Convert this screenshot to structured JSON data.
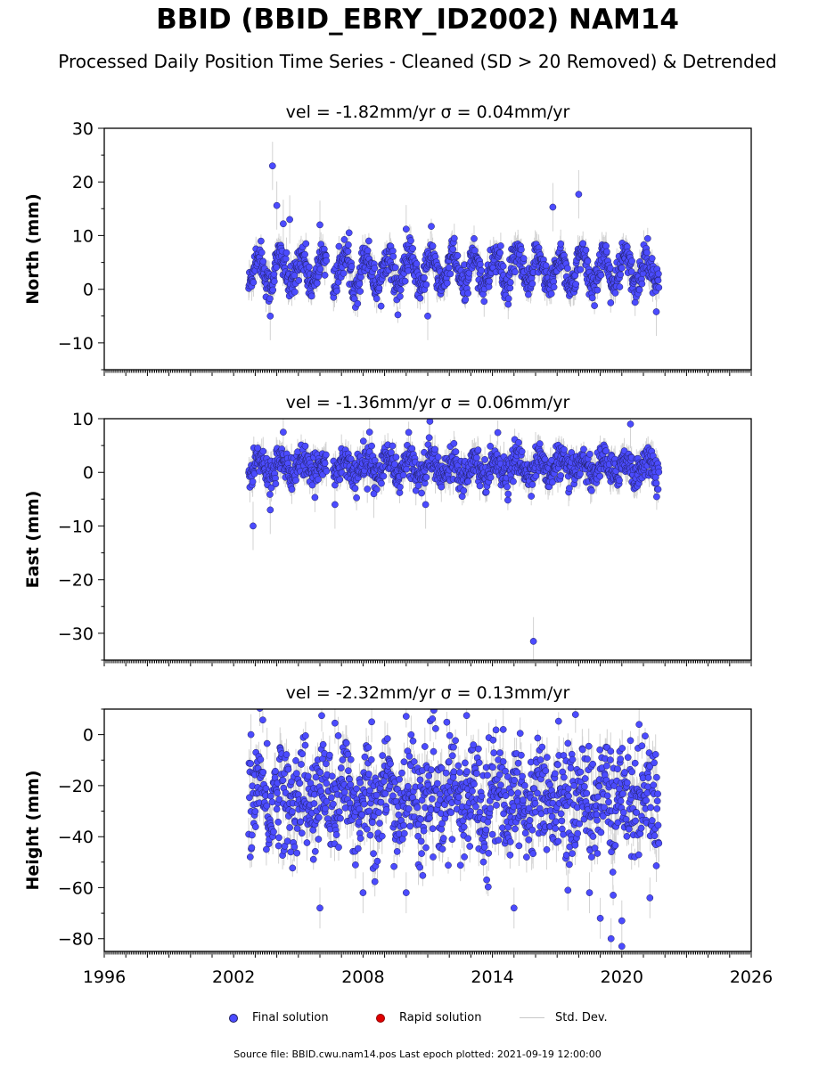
{
  "title": "BBID (BBID_EBRY_ID2002) NAM14",
  "subtitle": "Processed Daily Position Time Series - Cleaned (SD > 20 Removed) & Detrended",
  "legend": {
    "final": "Final solution",
    "rapid": "Rapid solution",
    "sd": "Std. Dev."
  },
  "footer": "Source file: BBID.cwu.nam14.pos  Last epoch plotted: 2021-09-19 12:00:00",
  "colors": {
    "final": "#4b4bff",
    "final_edge": "#202060",
    "rapid": "#e00000",
    "sd": "#c8c8c8"
  },
  "chart_data": [
    {
      "type": "scatter",
      "component": "north",
      "title": "vel = -1.82mm/yr   σ = 0.04mm/yr",
      "ylabel": "North (mm)",
      "xlim": [
        1996,
        2026
      ],
      "ylim": [
        -15,
        30
      ],
      "yticks": [
        -10,
        0,
        10,
        20,
        30
      ],
      "xticks": [
        1996,
        2002,
        2008,
        2014,
        2020,
        2026
      ],
      "show_xticklabels": false,
      "data_span": [
        2002.7,
        2021.72
      ],
      "mean": 3.5,
      "annual_amplitude": 3.0,
      "noise_sd": 1.6,
      "outliers": [
        [
          2003.8,
          23.0
        ],
        [
          2004.0,
          15.6
        ],
        [
          2004.3,
          12.2
        ],
        [
          2004.6,
          13.0
        ],
        [
          2006.0,
          12.0
        ],
        [
          2010.0,
          11.2
        ],
        [
          2016.8,
          15.3
        ],
        [
          2018.0,
          17.7
        ],
        [
          2003.7,
          -5.0
        ],
        [
          2011.0,
          -5.0
        ],
        [
          2021.6,
          -4.2
        ]
      ]
    },
    {
      "type": "scatter",
      "component": "east",
      "title": "vel = -1.36mm/yr   σ = 0.06mm/yr",
      "ylabel": "East (mm)",
      "xlim": [
        1996,
        2026
      ],
      "ylim": [
        -35,
        10
      ],
      "yticks": [
        -30,
        -20,
        -10,
        0,
        10
      ],
      "xticks": [
        1996,
        2002,
        2008,
        2014,
        2020,
        2026
      ],
      "show_xticklabels": false,
      "data_span": [
        2002.7,
        2021.72
      ],
      "mean": 1.0,
      "annual_amplitude": 1.6,
      "noise_sd": 1.5,
      "outliers": [
        [
          2002.9,
          -10.0
        ],
        [
          2003.7,
          -7.0
        ],
        [
          2015.9,
          -31.5
        ],
        [
          2011.1,
          9.5
        ],
        [
          2020.4,
          9.0
        ],
        [
          2004.3,
          7.5
        ],
        [
          2008.3,
          7.5
        ],
        [
          2006.7,
          -6.0
        ],
        [
          2010.9,
          -6.0
        ],
        [
          2008.5,
          -4.0
        ]
      ]
    },
    {
      "type": "scatter",
      "component": "height",
      "title": "vel = -2.32mm/yr   σ = 0.13mm/yr",
      "ylabel": "Height (mm)",
      "xlim": [
        1996,
        2026
      ],
      "ylim": [
        -85,
        10
      ],
      "yticks": [
        -80,
        -60,
        -40,
        -20,
        0
      ],
      "xticks": [
        1996,
        2002,
        2008,
        2014,
        2020,
        2026
      ],
      "show_xticklabels": true,
      "data_span": [
        2002.7,
        2021.72
      ],
      "mean": -25,
      "annual_amplitude": 6.0,
      "noise_sd": 10.5,
      "outliers": [
        [
          2002.8,
          0.0
        ],
        [
          2008.4,
          5.0
        ],
        [
          2012.8,
          7.5
        ],
        [
          2014.5,
          2.0
        ],
        [
          2019.5,
          -80.0
        ],
        [
          2020.0,
          -83.0
        ],
        [
          2020.0,
          -73.0
        ],
        [
          2019.0,
          -72.0
        ],
        [
          2006.0,
          -68.0
        ],
        [
          2015.0,
          -68.0
        ],
        [
          2017.5,
          -61.0
        ],
        [
          2018.5,
          -62.0
        ],
        [
          2008.0,
          -62.0
        ],
        [
          2010.0,
          -62.0
        ],
        [
          2021.3,
          -64.0
        ],
        [
          2006.7,
          4.5
        ],
        [
          2020.8,
          4.0
        ]
      ]
    }
  ]
}
